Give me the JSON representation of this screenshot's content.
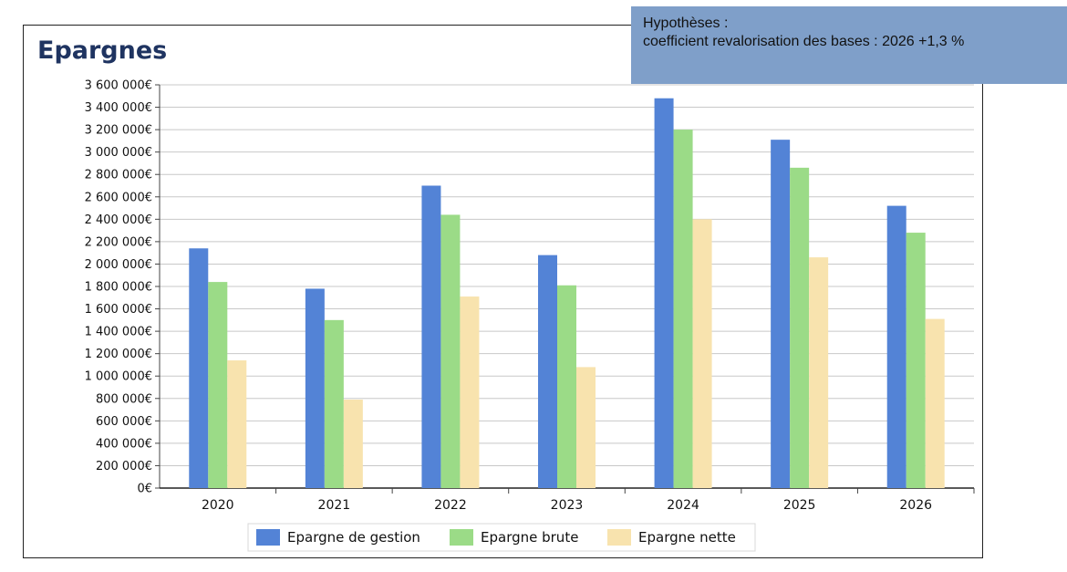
{
  "title": "Epargnes",
  "hypotheses": {
    "heading": "Hypothèses :",
    "line": "coefficient revalorisation des bases : 2026 +1,3 %"
  },
  "chart_data": {
    "type": "bar",
    "title": "Epargnes",
    "xlabel": "",
    "ylabel": "",
    "categories": [
      "2020",
      "2021",
      "2022",
      "2023",
      "2024",
      "2025",
      "2026"
    ],
    "ylim": [
      0,
      3600000
    ],
    "yticks": [
      0,
      200000,
      400000,
      600000,
      800000,
      1000000,
      1200000,
      1400000,
      1600000,
      1800000,
      2000000,
      2200000,
      2400000,
      2600000,
      2800000,
      3000000,
      3200000,
      3400000,
      3600000
    ],
    "ytick_labels": [
      "0€",
      "200 000€",
      "400 000€",
      "600 000€",
      "800 000€",
      "1 000 000€",
      "1 200 000€",
      "1 400 000€",
      "1 600 000€",
      "1 800 000€",
      "2 000 000€",
      "2 200 000€",
      "2 400 000€",
      "2 600 000€",
      "2 800 000€",
      "3 000 000€",
      "3 200 000€",
      "3 400 000€",
      "3 600 000€"
    ],
    "grid": true,
    "legend_position": "bottom",
    "series": [
      {
        "name": "Epargne de gestion",
        "color": "#5383d6",
        "values": [
          2140000,
          1780000,
          2700000,
          2080000,
          3480000,
          3110000,
          2520000
        ]
      },
      {
        "name": "Epargne brute",
        "color": "#9bdb87",
        "values": [
          1840000,
          1500000,
          2440000,
          1810000,
          3200000,
          2860000,
          2280000
        ]
      },
      {
        "name": "Epargne nette",
        "color": "#f8e3ae",
        "values": [
          1140000,
          790000,
          1710000,
          1080000,
          2400000,
          2060000,
          1510000
        ]
      }
    ]
  }
}
